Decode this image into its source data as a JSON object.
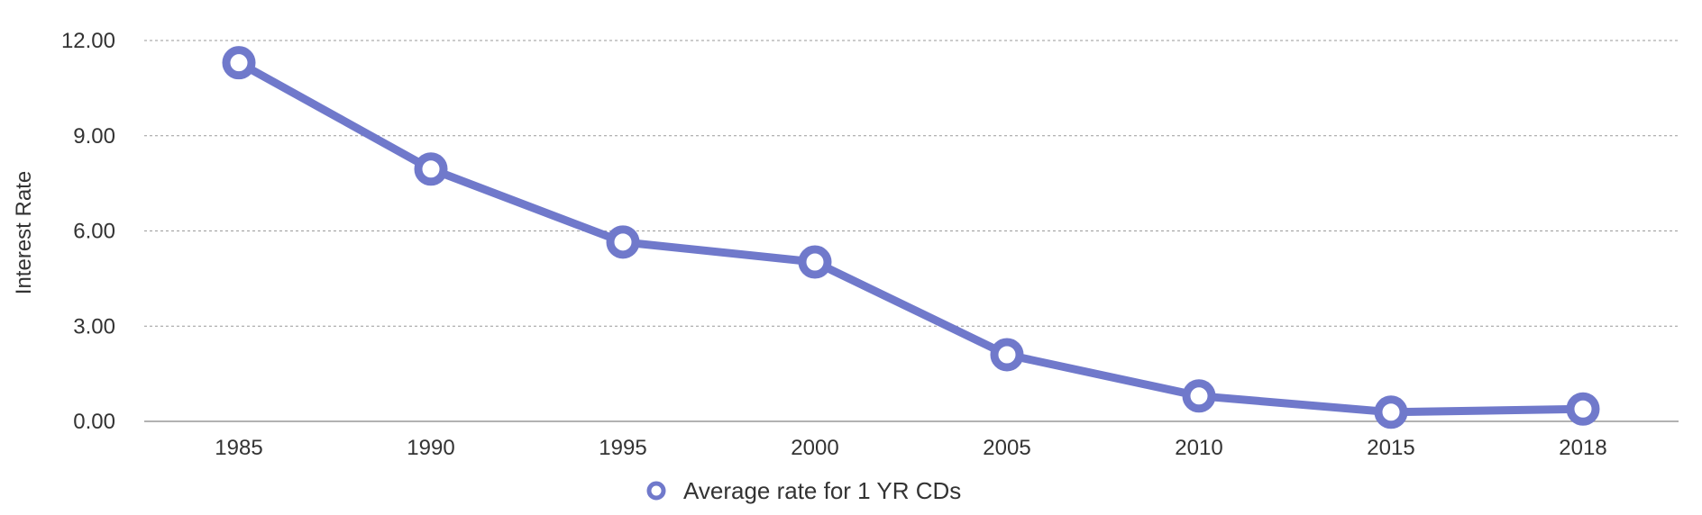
{
  "chart_data": {
    "type": "line",
    "title": "",
    "xlabel": "",
    "ylabel": "Interest Rate",
    "categories": [
      "1985",
      "1990",
      "1995",
      "2000",
      "2005",
      "2010",
      "2015",
      "2018"
    ],
    "y_ticks": [
      "0.00",
      "3.00",
      "6.00",
      "9.00",
      "12.00"
    ],
    "ylim": [
      0,
      12
    ],
    "grid": true,
    "legend_position": "bottom-center",
    "series": [
      {
        "name": "Average rate for 1 YR CDs",
        "values": [
          11.3,
          7.95,
          5.65,
          5.02,
          2.1,
          0.8,
          0.29,
          0.39
        ],
        "color": "#7079CB"
      }
    ]
  }
}
